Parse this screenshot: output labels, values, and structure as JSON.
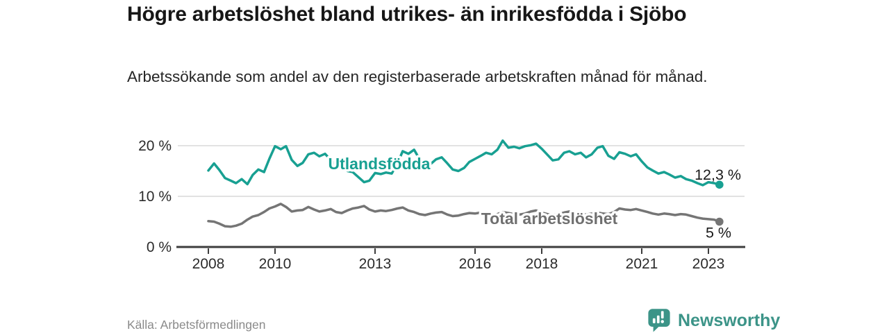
{
  "header": {
    "title": "Högre arbetslöshet bland utrikes- än inrikesfödda i Sjöbo",
    "subtitle": "Arbetssökande som andel av den registerbaserade arbetskraften månad för månad."
  },
  "footer": {
    "source": "Källa: Arbetsförmedlingen",
    "brand": "Newsworthy",
    "logo_icon": "newsworthy-speech-bubble-bar-chart-icon"
  },
  "colors": {
    "accent_teal": "#18a092",
    "series_gray": "#757575",
    "series_gray_label": "#6f6f6f",
    "logo_teal": "#3c9488",
    "grid": "#d8d8d8",
    "axis": "#3d3d3d",
    "tick_text": "#2b2b2b",
    "value_text": "#1a1a1a"
  },
  "chart_data": {
    "type": "line",
    "title": "Högre arbetslöshet bland utrikes- än inrikesfödda i Sjöbo",
    "subtitle": "Arbetssökande som andel av den registerbaserade arbetskraften månad för månad.",
    "source": "Källa: Arbetsförmedlingen",
    "xlabel": "",
    "ylabel": "",
    "unit": "%",
    "grid": "horizontal",
    "legend_position": "inline-labels",
    "xlim": [
      2007.05,
      2024.1
    ],
    "ylim": [
      0,
      22
    ],
    "x_tick_years": [
      2008,
      2010,
      2013,
      2016,
      2018,
      2021,
      2023
    ],
    "y_ticks": [
      {
        "value": 0,
        "label": "0 %"
      },
      {
        "value": 10,
        "label": "10 %"
      },
      {
        "value": 20,
        "label": "20 %"
      }
    ],
    "series": [
      {
        "name": "Utlandsfödda",
        "color": "#18a092",
        "end_value": 12.3,
        "end_label": "12,3 %",
        "points": [
          [
            2008.0,
            15.1
          ],
          [
            2008.17,
            16.5
          ],
          [
            2008.33,
            15.2
          ],
          [
            2008.5,
            13.6
          ],
          [
            2008.67,
            13.1
          ],
          [
            2008.83,
            12.6
          ],
          [
            2009.0,
            13.4
          ],
          [
            2009.17,
            12.4
          ],
          [
            2009.33,
            14.2
          ],
          [
            2009.5,
            15.3
          ],
          [
            2009.67,
            14.8
          ],
          [
            2009.83,
            17.4
          ],
          [
            2010.0,
            19.9
          ],
          [
            2010.17,
            19.3
          ],
          [
            2010.33,
            19.9
          ],
          [
            2010.5,
            17.2
          ],
          [
            2010.67,
            16.0
          ],
          [
            2010.83,
            16.6
          ],
          [
            2011.0,
            18.3
          ],
          [
            2011.17,
            18.6
          ],
          [
            2011.33,
            17.9
          ],
          [
            2011.5,
            18.4
          ],
          [
            2011.67,
            17.2
          ],
          [
            2011.83,
            16.2
          ],
          [
            2012.0,
            15.8
          ],
          [
            2012.17,
            15.0
          ],
          [
            2012.33,
            14.8
          ],
          [
            2012.5,
            13.8
          ],
          [
            2012.67,
            12.8
          ],
          [
            2012.83,
            13.1
          ],
          [
            2013.0,
            14.6
          ],
          [
            2013.17,
            14.4
          ],
          [
            2013.33,
            14.7
          ],
          [
            2013.5,
            14.5
          ],
          [
            2013.67,
            16.5
          ],
          [
            2013.83,
            18.9
          ],
          [
            2014.0,
            18.4
          ],
          [
            2014.17,
            19.2
          ],
          [
            2014.33,
            17.4
          ],
          [
            2014.5,
            16.2
          ],
          [
            2014.67,
            16.4
          ],
          [
            2014.83,
            17.3
          ],
          [
            2015.0,
            17.7
          ],
          [
            2015.17,
            16.5
          ],
          [
            2015.33,
            15.3
          ],
          [
            2015.5,
            15.0
          ],
          [
            2015.67,
            15.6
          ],
          [
            2015.83,
            16.8
          ],
          [
            2016.0,
            17.4
          ],
          [
            2016.17,
            18.0
          ],
          [
            2016.33,
            18.6
          ],
          [
            2016.5,
            18.3
          ],
          [
            2016.67,
            19.2
          ],
          [
            2016.83,
            21.0
          ],
          [
            2017.0,
            19.6
          ],
          [
            2017.17,
            19.8
          ],
          [
            2017.33,
            19.5
          ],
          [
            2017.5,
            19.9
          ],
          [
            2017.67,
            20.1
          ],
          [
            2017.83,
            20.4
          ],
          [
            2018.0,
            19.4
          ],
          [
            2018.17,
            18.2
          ],
          [
            2018.33,
            17.1
          ],
          [
            2018.5,
            17.3
          ],
          [
            2018.67,
            18.6
          ],
          [
            2018.83,
            18.9
          ],
          [
            2019.0,
            18.3
          ],
          [
            2019.17,
            18.6
          ],
          [
            2019.33,
            17.7
          ],
          [
            2019.5,
            18.3
          ],
          [
            2019.67,
            19.6
          ],
          [
            2019.83,
            19.9
          ],
          [
            2020.0,
            18.0
          ],
          [
            2020.17,
            17.4
          ],
          [
            2020.33,
            18.7
          ],
          [
            2020.5,
            18.4
          ],
          [
            2020.67,
            17.9
          ],
          [
            2020.83,
            18.3
          ],
          [
            2021.0,
            16.9
          ],
          [
            2021.17,
            15.7
          ],
          [
            2021.33,
            15.1
          ],
          [
            2021.5,
            14.5
          ],
          [
            2021.67,
            14.8
          ],
          [
            2021.83,
            14.3
          ],
          [
            2022.0,
            13.7
          ],
          [
            2022.17,
            14.0
          ],
          [
            2022.33,
            13.4
          ],
          [
            2022.5,
            13.1
          ],
          [
            2022.67,
            12.6
          ],
          [
            2022.83,
            12.2
          ],
          [
            2023.0,
            12.8
          ],
          [
            2023.17,
            12.6
          ],
          [
            2023.33,
            12.3
          ]
        ]
      },
      {
        "name": "Total arbetslöshet",
        "color": "#757575",
        "end_value": 5.0,
        "end_label": "5 %",
        "points": [
          [
            2008.0,
            5.1
          ],
          [
            2008.17,
            5.0
          ],
          [
            2008.33,
            4.6
          ],
          [
            2008.5,
            4.1
          ],
          [
            2008.67,
            4.0
          ],
          [
            2008.83,
            4.2
          ],
          [
            2009.0,
            4.6
          ],
          [
            2009.17,
            5.4
          ],
          [
            2009.33,
            6.0
          ],
          [
            2009.5,
            6.3
          ],
          [
            2009.67,
            6.9
          ],
          [
            2009.83,
            7.6
          ],
          [
            2010.0,
            8.0
          ],
          [
            2010.17,
            8.5
          ],
          [
            2010.33,
            7.9
          ],
          [
            2010.5,
            7.0
          ],
          [
            2010.67,
            7.2
          ],
          [
            2010.83,
            7.3
          ],
          [
            2011.0,
            7.9
          ],
          [
            2011.17,
            7.4
          ],
          [
            2011.33,
            7.0
          ],
          [
            2011.5,
            7.2
          ],
          [
            2011.67,
            7.5
          ],
          [
            2011.83,
            6.9
          ],
          [
            2012.0,
            6.7
          ],
          [
            2012.17,
            7.2
          ],
          [
            2012.33,
            7.6
          ],
          [
            2012.5,
            7.8
          ],
          [
            2012.67,
            8.1
          ],
          [
            2012.83,
            7.4
          ],
          [
            2013.0,
            7.0
          ],
          [
            2013.17,
            7.2
          ],
          [
            2013.33,
            7.1
          ],
          [
            2013.5,
            7.3
          ],
          [
            2013.67,
            7.6
          ],
          [
            2013.83,
            7.8
          ],
          [
            2014.0,
            7.2
          ],
          [
            2014.17,
            6.9
          ],
          [
            2014.33,
            6.5
          ],
          [
            2014.5,
            6.3
          ],
          [
            2014.67,
            6.6
          ],
          [
            2014.83,
            6.8
          ],
          [
            2015.0,
            6.9
          ],
          [
            2015.17,
            6.4
          ],
          [
            2015.33,
            6.1
          ],
          [
            2015.5,
            6.2
          ],
          [
            2015.67,
            6.5
          ],
          [
            2015.83,
            6.7
          ],
          [
            2016.0,
            6.6
          ],
          [
            2016.17,
            6.8
          ],
          [
            2016.33,
            6.6
          ],
          [
            2016.5,
            6.3
          ],
          [
            2016.67,
            6.5
          ],
          [
            2016.83,
            6.9
          ],
          [
            2017.0,
            6.7
          ],
          [
            2017.17,
            6.5
          ],
          [
            2017.33,
            6.4
          ],
          [
            2017.5,
            6.6
          ],
          [
            2017.67,
            7.0
          ],
          [
            2017.83,
            7.2
          ],
          [
            2018.0,
            6.8
          ],
          [
            2018.17,
            6.5
          ],
          [
            2018.33,
            6.3
          ],
          [
            2018.5,
            6.5
          ],
          [
            2018.67,
            6.8
          ],
          [
            2018.83,
            7.0
          ],
          [
            2019.0,
            6.7
          ],
          [
            2019.17,
            6.5
          ],
          [
            2019.33,
            6.4
          ],
          [
            2019.5,
            6.6
          ],
          [
            2019.67,
            6.8
          ],
          [
            2019.83,
            6.6
          ],
          [
            2020.0,
            6.5
          ],
          [
            2020.17,
            6.9
          ],
          [
            2020.33,
            7.6
          ],
          [
            2020.5,
            7.4
          ],
          [
            2020.67,
            7.3
          ],
          [
            2020.83,
            7.5
          ],
          [
            2021.0,
            7.2
          ],
          [
            2021.17,
            6.9
          ],
          [
            2021.33,
            6.6
          ],
          [
            2021.5,
            6.4
          ],
          [
            2021.67,
            6.6
          ],
          [
            2021.83,
            6.5
          ],
          [
            2022.0,
            6.3
          ],
          [
            2022.17,
            6.5
          ],
          [
            2022.33,
            6.4
          ],
          [
            2022.5,
            6.1
          ],
          [
            2022.67,
            5.8
          ],
          [
            2022.83,
            5.6
          ],
          [
            2023.0,
            5.5
          ],
          [
            2023.17,
            5.4
          ],
          [
            2023.33,
            5.0
          ]
        ]
      }
    ]
  }
}
